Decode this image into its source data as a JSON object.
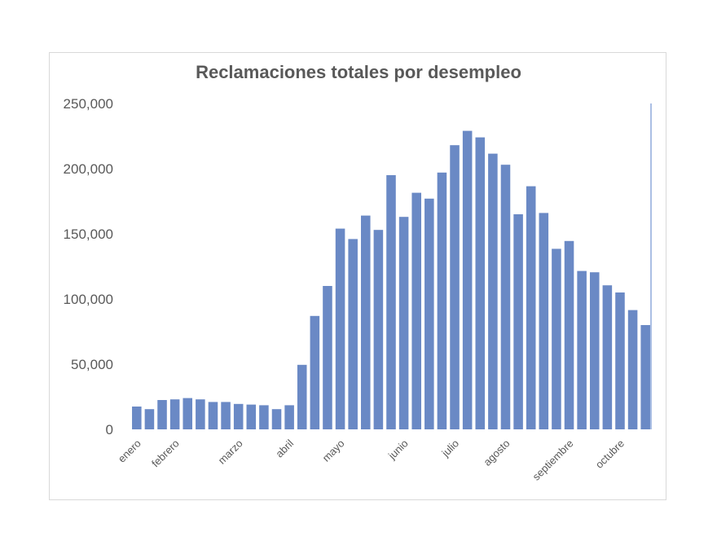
{
  "chart_data": {
    "type": "bar",
    "title": "Reclamaciones totales por desempleo",
    "xlabel": "",
    "ylabel": "",
    "ylim": [
      0,
      250000
    ],
    "yticks": [
      0,
      50000,
      100000,
      150000,
      200000,
      250000
    ],
    "ytick_labels": [
      "0",
      "50,000",
      "100,000",
      "150,000",
      "200,000",
      "250,000"
    ],
    "xtick_labels": [
      {
        "label": "enero",
        "index": 0
      },
      {
        "label": "febrero",
        "index": 3
      },
      {
        "label": "marzo",
        "index": 8
      },
      {
        "label": "abril",
        "index": 12
      },
      {
        "label": "mayo",
        "index": 16
      },
      {
        "label": "junio",
        "index": 21
      },
      {
        "label": "julio",
        "index": 25
      },
      {
        "label": "agosto",
        "index": 29
      },
      {
        "label": "septiembre",
        "index": 34
      },
      {
        "label": "octubre",
        "index": 38
      }
    ],
    "values": [
      17500,
      15500,
      22500,
      23000,
      24000,
      23000,
      21000,
      21000,
      19500,
      19000,
      18500,
      15500,
      18500,
      49500,
      87000,
      110000,
      154000,
      146000,
      164000,
      153000,
      195000,
      163000,
      181500,
      177000,
      197000,
      218000,
      229000,
      224000,
      211500,
      203000,
      165000,
      186500,
      166000,
      138500,
      144500,
      121500,
      120500,
      110500,
      105000,
      91500,
      80000
    ],
    "grid": false,
    "legend": "none",
    "bar_color": "#6a89c5",
    "axis_line_color": "#8faadc"
  }
}
